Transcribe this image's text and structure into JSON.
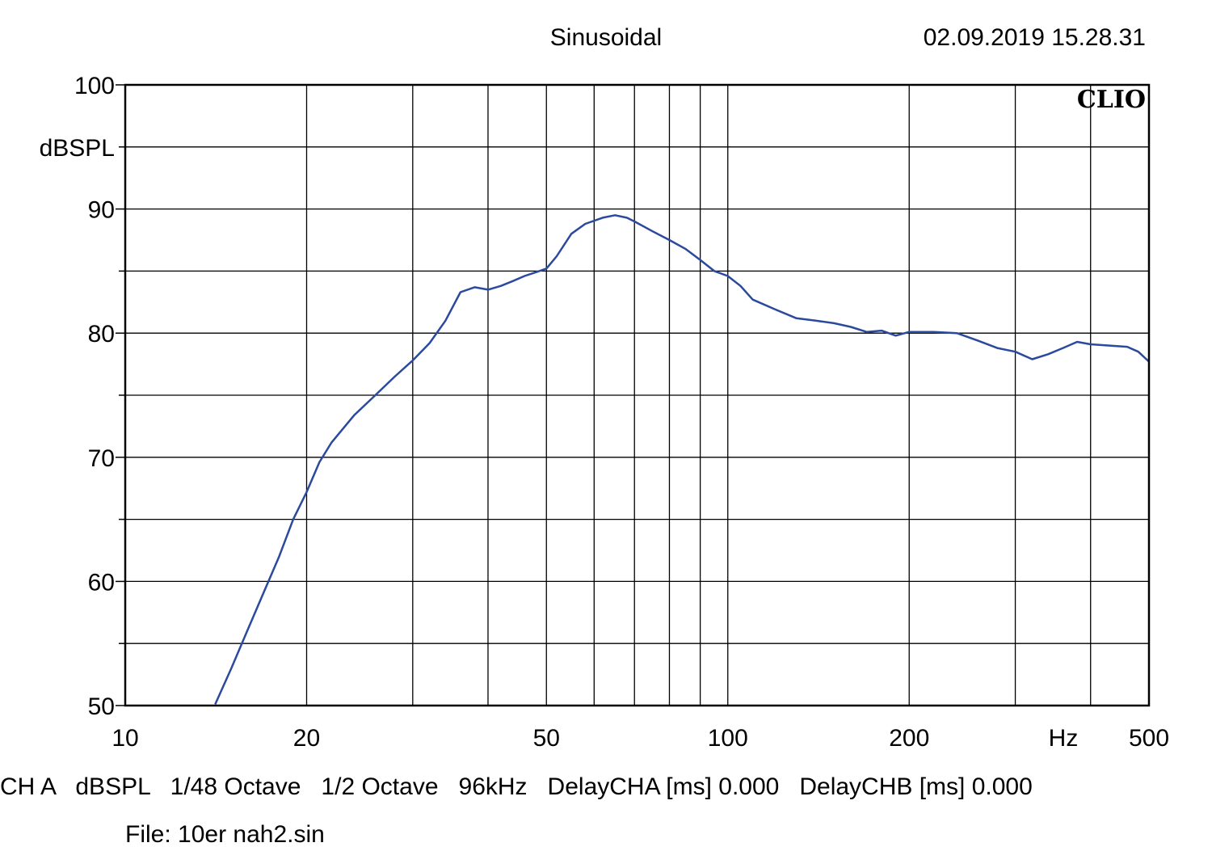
{
  "header": {
    "title": "Sinusoidal",
    "timestamp": "02.09.2019 15.28.31",
    "logo": "CLIO"
  },
  "footer": {
    "info": "CH A   dBSPL   1/48 Octave   1/2 Octave   96kHz   DelayCHA [ms] 0.000   DelayCHB [ms] 0.000",
    "file": "File: 10er nah2.sin"
  },
  "colors": {
    "trace": "#2b4a9e",
    "grid": "#000000",
    "background": "#ffffff"
  },
  "chart_data": {
    "type": "line",
    "title": "Sinusoidal",
    "xlabel": "Hz",
    "ylabel": "dBSPL",
    "xscale": "log",
    "xlim": [
      10,
      500
    ],
    "ylim": [
      50,
      100
    ],
    "grid": true,
    "x_ticks": [
      10,
      20,
      50,
      100,
      200,
      500
    ],
    "x_tick_labels": [
      "10",
      "20",
      "50",
      "100",
      "200",
      "500"
    ],
    "x_minor_grid": [
      30,
      40,
      60,
      70,
      80,
      90,
      300,
      400
    ],
    "y_ticks": [
      50,
      60,
      70,
      80,
      90,
      100
    ],
    "y_tick_labels": [
      "50",
      "60",
      "70",
      "80",
      "90",
      "100"
    ],
    "y_minor_grid": [
      55,
      65,
      75,
      85,
      95
    ],
    "series": [
      {
        "color": "#2b4a9e",
        "x": [
          14.1,
          15,
          16,
          17,
          18,
          19,
          20,
          21,
          22,
          24,
          26,
          28,
          30,
          32,
          34,
          36,
          38,
          40,
          42,
          44,
          46,
          48,
          50,
          52,
          55,
          58,
          62,
          65,
          68,
          70,
          75,
          80,
          85,
          90,
          95,
          100,
          105,
          110,
          120,
          130,
          140,
          150,
          160,
          170,
          180,
          190,
          200,
          220,
          240,
          260,
          280,
          300,
          320,
          340,
          360,
          380,
          400,
          430,
          460,
          480,
          500
        ],
        "y": [
          50.1,
          53.0,
          56.2,
          59.2,
          62.0,
          65.0,
          67.2,
          69.6,
          71.2,
          73.4,
          75.0,
          76.5,
          77.8,
          79.2,
          81.0,
          83.3,
          83.7,
          83.5,
          83.8,
          84.2,
          84.6,
          84.9,
          85.2,
          86.2,
          88.0,
          88.8,
          89.3,
          89.5,
          89.3,
          89.0,
          88.2,
          87.5,
          86.8,
          85.9,
          85.0,
          84.6,
          83.8,
          82.7,
          81.9,
          81.2,
          81.0,
          80.8,
          80.5,
          80.1,
          80.2,
          79.8,
          80.1,
          80.1,
          80.0,
          79.4,
          78.8,
          78.5,
          77.9,
          78.3,
          78.8,
          79.3,
          79.1,
          79.0,
          78.9,
          78.5,
          77.7
        ]
      }
    ]
  }
}
